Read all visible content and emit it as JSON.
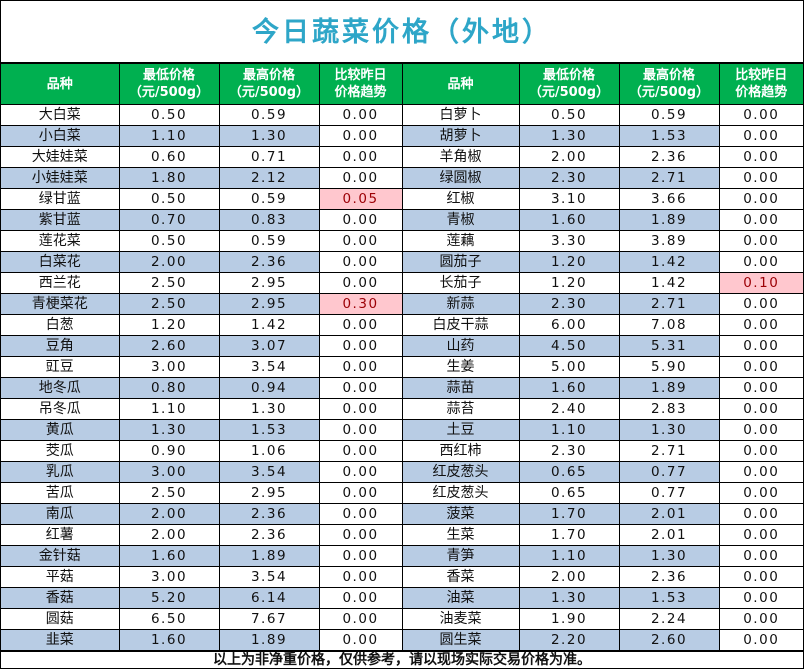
{
  "title": "今日蔬菜价格（外地）",
  "headers": [
    "品种",
    "最低价格\n（元/500g）",
    "最高价格\n（元/500g）",
    "比较昨日\n价格趋势"
  ],
  "colors": {
    "header_bg": "#00b050",
    "title": "#2ea6c8",
    "alt_row": "#b8cce4",
    "increase_bg": "#ffc7ce",
    "increase_text": "#9c0006"
  },
  "left": [
    [
      "大白菜",
      "0.50",
      "0.59",
      "0.00"
    ],
    [
      "小白菜",
      "1.10",
      "1.30",
      "0.00"
    ],
    [
      "大娃娃菜",
      "0.60",
      "0.71",
      "0.00"
    ],
    [
      "小娃娃菜",
      "1.80",
      "2.12",
      "0.00"
    ],
    [
      "绿甘蓝",
      "0.50",
      "0.59",
      "0.05"
    ],
    [
      "紫甘蓝",
      "0.70",
      "0.83",
      "0.00"
    ],
    [
      "莲花菜",
      "0.50",
      "0.59",
      "0.00"
    ],
    [
      "白菜花",
      "2.00",
      "2.36",
      "0.00"
    ],
    [
      "西兰花",
      "2.50",
      "2.95",
      "0.00"
    ],
    [
      "青梗菜花",
      "2.50",
      "2.95",
      "0.30"
    ],
    [
      "白葱",
      "1.20",
      "1.42",
      "0.00"
    ],
    [
      "豆角",
      "2.60",
      "3.07",
      "0.00"
    ],
    [
      "豇豆",
      "3.00",
      "3.54",
      "0.00"
    ],
    [
      "地冬瓜",
      "0.80",
      "0.94",
      "0.00"
    ],
    [
      "吊冬瓜",
      "1.10",
      "1.30",
      "0.00"
    ],
    [
      "黄瓜",
      "1.30",
      "1.53",
      "0.00"
    ],
    [
      "茭瓜",
      "0.90",
      "1.06",
      "0.00"
    ],
    [
      "乳瓜",
      "3.00",
      "3.54",
      "0.00"
    ],
    [
      "苦瓜",
      "2.50",
      "2.95",
      "0.00"
    ],
    [
      "南瓜",
      "2.00",
      "2.36",
      "0.00"
    ],
    [
      "红薯",
      "2.00",
      "2.36",
      "0.00"
    ],
    [
      "金针菇",
      "1.60",
      "1.89",
      "0.00"
    ],
    [
      "平菇",
      "3.00",
      "3.54",
      "0.00"
    ],
    [
      "香菇",
      "5.20",
      "6.14",
      "0.00"
    ],
    [
      "圆菇",
      "6.50",
      "7.67",
      "0.00"
    ],
    [
      "韭菜",
      "1.60",
      "1.89",
      "0.00"
    ]
  ],
  "right": [
    [
      "白萝卜",
      "0.50",
      "0.59",
      "0.00"
    ],
    [
      "胡萝卜",
      "1.30",
      "1.53",
      "0.00"
    ],
    [
      "羊角椒",
      "2.00",
      "2.36",
      "0.00"
    ],
    [
      "绿圆椒",
      "2.30",
      "2.71",
      "0.00"
    ],
    [
      "红椒",
      "3.10",
      "3.66",
      "0.00"
    ],
    [
      "青椒",
      "1.60",
      "1.89",
      "0.00"
    ],
    [
      "莲藕",
      "3.30",
      "3.89",
      "0.00"
    ],
    [
      "圆茄子",
      "1.20",
      "1.42",
      "0.00"
    ],
    [
      "长茄子",
      "1.20",
      "1.42",
      "0.10"
    ],
    [
      "新蒜",
      "2.30",
      "2.71",
      "0.00"
    ],
    [
      "白皮干蒜",
      "6.00",
      "7.08",
      "0.00"
    ],
    [
      "山药",
      "4.50",
      "5.31",
      "0.00"
    ],
    [
      "生姜",
      "5.00",
      "5.90",
      "0.00"
    ],
    [
      "蒜苗",
      "1.60",
      "1.89",
      "0.00"
    ],
    [
      "蒜苔",
      "2.40",
      "2.83",
      "0.00"
    ],
    [
      "土豆",
      "1.10",
      "1.30",
      "0.00"
    ],
    [
      "西红柿",
      "2.30",
      "2.71",
      "0.00"
    ],
    [
      "红皮葱头",
      "0.65",
      "0.77",
      "0.00"
    ],
    [
      "红皮葱头",
      "0.65",
      "0.77",
      "0.00"
    ],
    [
      "菠菜",
      "1.70",
      "2.01",
      "0.00"
    ],
    [
      "生菜",
      "1.70",
      "2.01",
      "0.00"
    ],
    [
      "青笋",
      "1.10",
      "1.30",
      "0.00"
    ],
    [
      "香菜",
      "2.00",
      "2.36",
      "0.00"
    ],
    [
      "油菜",
      "1.30",
      "1.53",
      "0.00"
    ],
    [
      "油麦菜",
      "1.90",
      "2.24",
      "0.00"
    ],
    [
      "圆生菜",
      "2.20",
      "2.60",
      "0.00"
    ]
  ],
  "footer": "以上为非净重价格，仅供参考，请以现场实际交易价格为准。"
}
